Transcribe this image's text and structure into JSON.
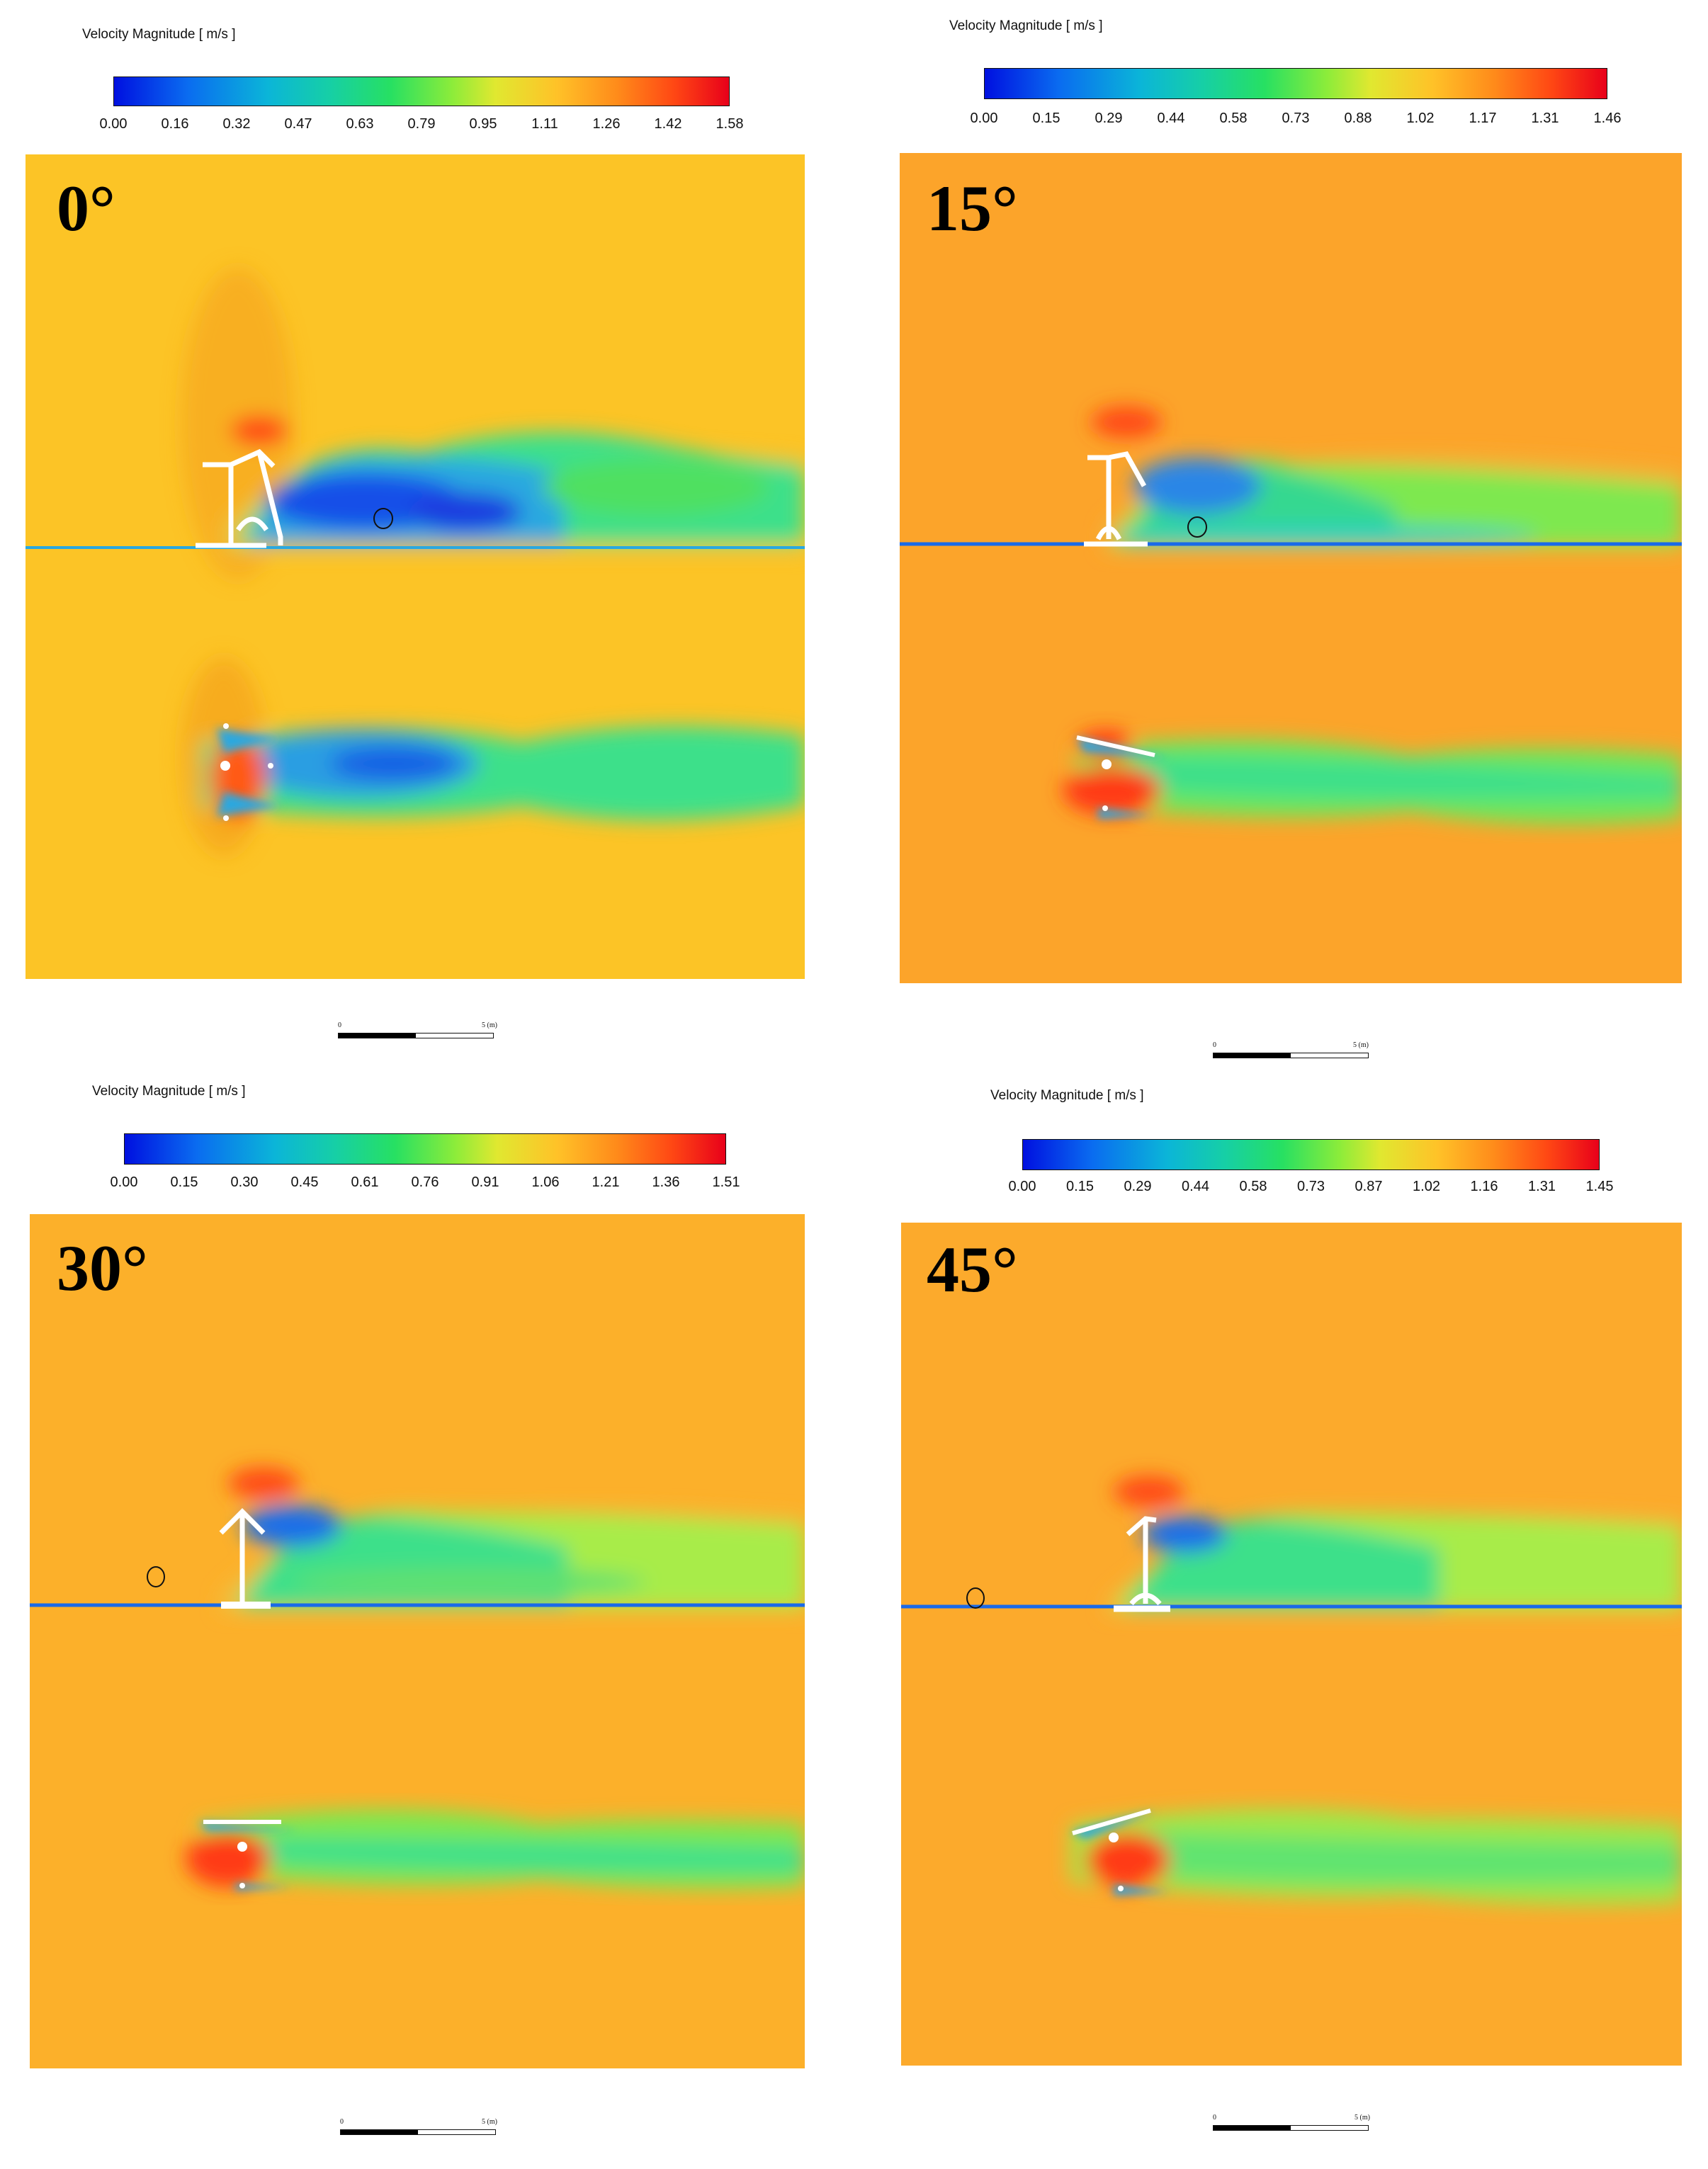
{
  "colorbar": {
    "gradient_colors": [
      "#0010e0",
      "#0a6cf0",
      "#0bb5d8",
      "#16cfa6",
      "#27e062",
      "#8cec3a",
      "#e0e830",
      "#ffc228",
      "#ff8a1a",
      "#ff4814",
      "#e8001a"
    ]
  },
  "panels": [
    {
      "angle_label": "0°",
      "colorbar_title": "Velocity Magnitude [ m/s ]",
      "colorbar_ticks": [
        "0.00",
        "0.16",
        "0.32",
        "0.47",
        "0.63",
        "0.79",
        "0.95",
        "1.11",
        "1.26",
        "1.42",
        "1.58"
      ],
      "background_color": "#fcc426",
      "scale_zero": "0",
      "scale_end": "5 (m)"
    },
    {
      "angle_label": "15°",
      "colorbar_title": "Velocity Magnitude [ m/s ]",
      "colorbar_ticks": [
        "0.00",
        "0.15",
        "0.29",
        "0.44",
        "0.58",
        "0.73",
        "0.88",
        "1.02",
        "1.17",
        "1.31",
        "1.46"
      ],
      "background_color": "#fca42a",
      "scale_zero": "0",
      "scale_end": "5 (m)"
    },
    {
      "angle_label": "30°",
      "colorbar_title": "Velocity Magnitude [ m/s ]",
      "colorbar_ticks": [
        "0.00",
        "0.15",
        "0.30",
        "0.45",
        "0.61",
        "0.76",
        "0.91",
        "1.06",
        "1.21",
        "1.36",
        "1.51"
      ],
      "background_color": "#fcb02a",
      "scale_zero": "0",
      "scale_end": "5 (m)"
    },
    {
      "angle_label": "45°",
      "colorbar_title": "Velocity Magnitude [ m/s ]",
      "colorbar_ticks": [
        "0.00",
        "0.15",
        "0.29",
        "0.44",
        "0.58",
        "0.73",
        "0.87",
        "1.02",
        "1.16",
        "1.31",
        "1.45"
      ],
      "background_color": "#fcaa2c",
      "scale_zero": "0",
      "scale_end": "5 (m)"
    }
  ]
}
